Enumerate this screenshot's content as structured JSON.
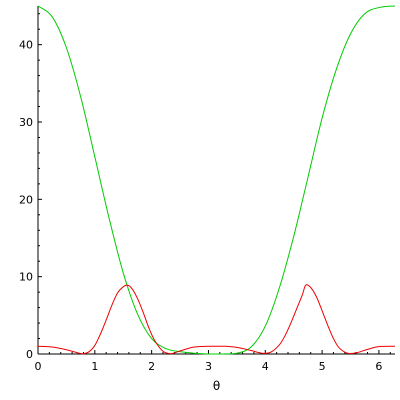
{
  "chart_data": {
    "type": "line",
    "xlabel": "θ",
    "ylabel": "",
    "xlim": [
      0,
      6.2832
    ],
    "ylim": [
      0,
      45
    ],
    "x_ticks": [
      0,
      1,
      2,
      3,
      4,
      5,
      6
    ],
    "y_ticks": [
      0,
      10,
      20,
      30,
      40
    ],
    "grid": false,
    "legend": "none",
    "series": [
      {
        "color": "#00cc00",
        "x": [
          0,
          0.25,
          0.5,
          0.75,
          1,
          1.25,
          1.5,
          1.75,
          2,
          2.25,
          2.5,
          2.75,
          3,
          3.1416,
          3.25,
          3.5,
          3.75,
          4,
          4.25,
          4.5,
          4.75,
          5,
          5.25,
          5.5,
          5.75,
          6,
          6.2832
        ],
        "y": [
          45,
          43.6,
          39.6,
          33.3,
          25.5,
          17.6,
          10.5,
          5.2,
          2.0,
          0.7,
          0.3,
          0.1,
          0,
          0,
          0,
          0.1,
          0.9,
          3.6,
          8.6,
          15.2,
          22.8,
          30.5,
          36.8,
          41.4,
          44.0,
          44.8,
          45
        ]
      },
      {
        "color": "#ee0000",
        "x": [
          0,
          0.25,
          0.5,
          0.7,
          0.8,
          0.9,
          1.0,
          1.1,
          1.2,
          1.3,
          1.4,
          1.5,
          1.5708,
          1.65,
          1.75,
          1.85,
          1.95,
          2.05,
          2.2,
          2.35,
          2.5,
          2.75,
          3.0,
          3.1416,
          3.3,
          3.5,
          3.75,
          3.95,
          4.1,
          4.25,
          4.35,
          4.45,
          4.55,
          4.65,
          4.7124,
          4.8,
          4.9,
          5.0,
          5.1,
          5.2,
          5.3,
          5.45,
          5.6,
          5.8,
          6.0,
          6.2832
        ],
        "y": [
          1.0,
          0.9,
          0.55,
          0.15,
          0.04,
          0.3,
          1.1,
          2.6,
          4.4,
          6.3,
          7.9,
          8.7,
          8.9,
          8.5,
          7.2,
          5.4,
          3.4,
          1.8,
          0.35,
          0.05,
          0.4,
          0.9,
          1.0,
          1.0,
          1.0,
          0.85,
          0.45,
          0.1,
          0.25,
          1.2,
          2.4,
          4.0,
          5.8,
          7.6,
          8.9,
          8.6,
          7.4,
          5.6,
          3.7,
          2.0,
          0.8,
          0.1,
          0.15,
          0.6,
          0.95,
          1.0
        ]
      }
    ]
  }
}
